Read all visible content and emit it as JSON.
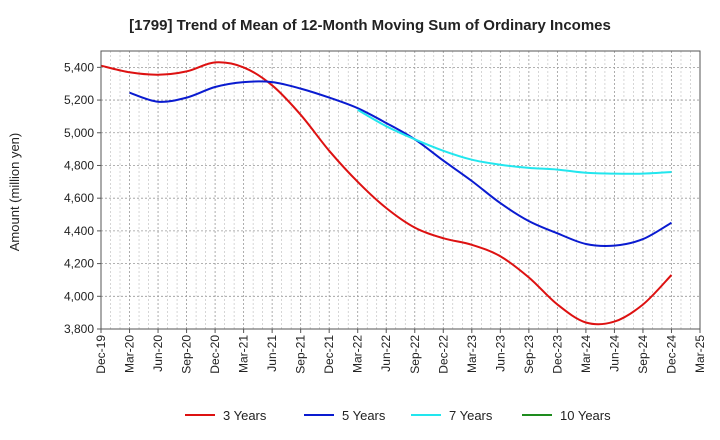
{
  "chart_data": {
    "type": "line",
    "title": "[1799]  Trend of Mean of 12-Month Moving Sum of Ordinary Incomes",
    "xlabel": "",
    "ylabel": "Amount (million yen)",
    "ylim": [
      3800,
      5500
    ],
    "yticks": [
      3800,
      4000,
      4200,
      4400,
      4600,
      4800,
      5000,
      5200,
      5400
    ],
    "ytick_labels": [
      "3,800",
      "4,000",
      "4,200",
      "4,400",
      "4,600",
      "4,800",
      "5,000",
      "5,200",
      "5,400"
    ],
    "categories": [
      "Dec-19",
      "Mar-20",
      "Jun-20",
      "Sep-20",
      "Dec-20",
      "Mar-21",
      "Jun-21",
      "Sep-21",
      "Dec-21",
      "Mar-22",
      "Jun-22",
      "Sep-22",
      "Dec-22",
      "Mar-23",
      "Jun-23",
      "Sep-23",
      "Dec-23",
      "Mar-24",
      "Jun-24",
      "Sep-24",
      "Dec-24",
      "Mar-25"
    ],
    "grid": true,
    "legend_position": "bottom",
    "series": [
      {
        "name": "3 Years",
        "color": "#dd1111",
        "values": [
          5410,
          5370,
          5355,
          5375,
          5430,
          5400,
          5290,
          5110,
          4890,
          4700,
          4540,
          4420,
          4355,
          4315,
          4245,
          4115,
          3950,
          3840,
          3845,
          3950,
          4130,
          null
        ]
      },
      {
        "name": "5 Years",
        "color": "#0a1bd0",
        "values": [
          null,
          5245,
          5190,
          5215,
          5280,
          5310,
          5310,
          5270,
          5215,
          5150,
          5060,
          4960,
          4830,
          4705,
          4570,
          4460,
          4385,
          4320,
          4310,
          4350,
          4450,
          null
        ]
      },
      {
        "name": "7 Years",
        "color": "#22e6ee",
        "values": [
          null,
          null,
          null,
          null,
          null,
          null,
          null,
          null,
          null,
          5140,
          5040,
          4960,
          4890,
          4835,
          4805,
          4785,
          4775,
          4755,
          4750,
          4750,
          4760,
          null
        ]
      },
      {
        "name": "10 Years",
        "color": "#1e8c1e",
        "values": [
          null,
          null,
          null,
          null,
          null,
          null,
          null,
          null,
          null,
          null,
          null,
          null,
          null,
          null,
          null,
          null,
          null,
          null,
          null,
          null,
          null,
          null
        ]
      }
    ]
  }
}
